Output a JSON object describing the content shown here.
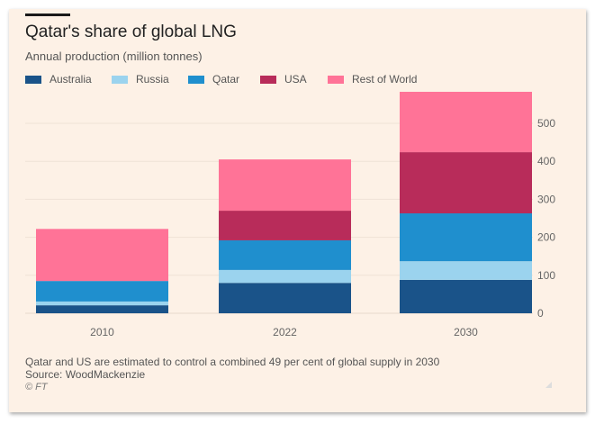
{
  "chart_data": {
    "type": "bar",
    "stacked": true,
    "title": "Qatar's share of global LNG",
    "subtitle": "Annual production (million tonnes)",
    "categories": [
      "2010",
      "2022",
      "2030"
    ],
    "series": [
      {
        "name": "Australia",
        "color": "#1a5389",
        "values": [
          21,
          80,
          88
        ]
      },
      {
        "name": "Russia",
        "color": "#9bd3ee",
        "values": [
          10,
          34,
          49
        ]
      },
      {
        "name": "Qatar",
        "color": "#1f8fce",
        "values": [
          54,
          78,
          126
        ]
      },
      {
        "name": "USA",
        "color": "#b82c5a",
        "values": [
          0,
          78,
          161
        ]
      },
      {
        "name": "Rest of World",
        "color": "#ff7397",
        "values": [
          137,
          135,
          159
        ]
      }
    ],
    "xlabel": "",
    "ylabel": "",
    "ylim": [
      0,
      600
    ],
    "yticks": [
      0,
      100,
      200,
      300,
      400,
      500
    ],
    "yaxis_position": "right",
    "grid": true,
    "legend_position": "top-left"
  },
  "footer": {
    "note": "Qatar and US are estimated to control a combined 49 per cent of global supply in 2030",
    "source": "Source: WoodMackenzie",
    "copyright": "© FT"
  }
}
